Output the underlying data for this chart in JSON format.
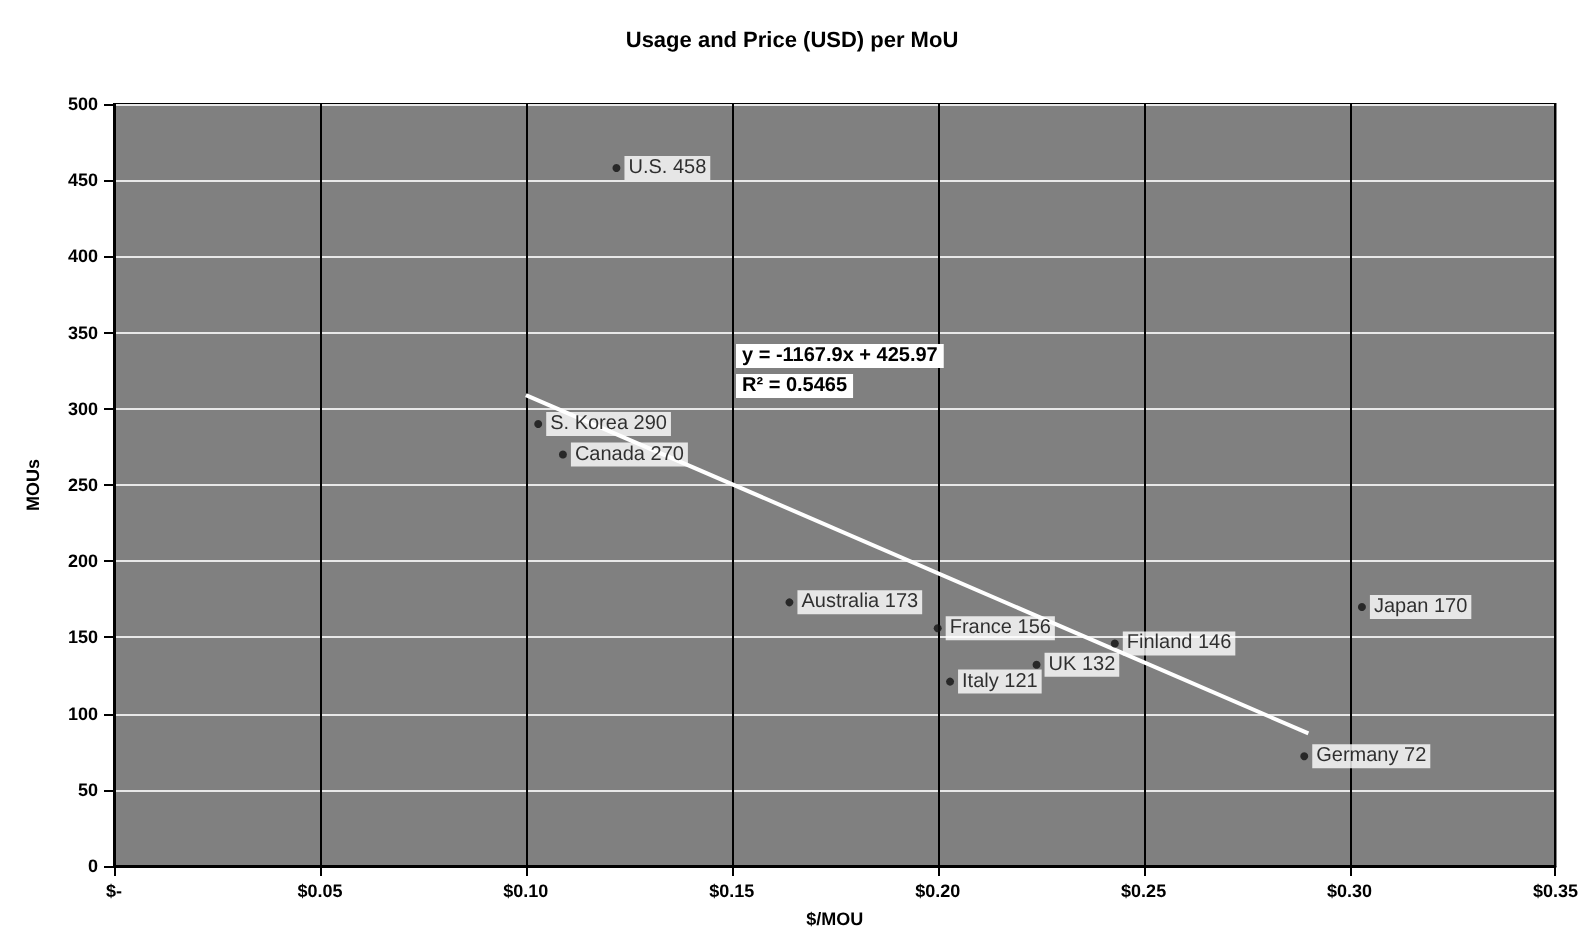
{
  "chart_data": {
    "type": "scatter",
    "title": "Usage and Price (USD) per MoU",
    "xlabel": "$/MOU",
    "ylabel": "MOUs",
    "series": [
      {
        "color": "#111111",
        "marker": "circle",
        "x": [
          0.122,
          0.103,
          0.109,
          0.164,
          0.2,
          0.243,
          0.224,
          0.203,
          0.303,
          0.289
        ],
        "values": [
          458,
          290,
          270,
          173,
          156,
          146,
          132,
          121,
          170,
          72
        ],
        "value_labels": [
          "U.S. 458",
          "S. Korea 290",
          "Canada 270",
          "Australia 173",
          "France 156",
          "Finland 146",
          "UK 132",
          "Italy 121",
          "Japan 170",
          "Germany 72"
        ]
      },
      {
        "type": "line",
        "color": "#ffffff",
        "marker": "none",
        "x": [
          0.1,
          0.29
        ],
        "values": [
          309,
          87
        ]
      }
    ],
    "annotations": [
      "y = -1167.9x + 425.97",
      "R² = 0.5465"
    ],
    "xlim": [
      0,
      0.35
    ],
    "xticks": [
      {
        "value": 0,
        "label": "$-"
      },
      {
        "value": 0.05,
        "label": "$0.05"
      },
      {
        "value": 0.1,
        "label": "$0.10"
      },
      {
        "value": 0.15,
        "label": "$0.15"
      },
      {
        "value": 0.2,
        "label": "$0.20"
      },
      {
        "value": 0.25,
        "label": "$0.25"
      },
      {
        "value": 0.3,
        "label": "$0.30"
      },
      {
        "value": 0.35,
        "label": "$0.35"
      }
    ],
    "ylim": [
      0,
      500
    ],
    "yticks": [
      0,
      50,
      100,
      150,
      200,
      250,
      300,
      350,
      400,
      450,
      500
    ],
    "grid": true
  }
}
